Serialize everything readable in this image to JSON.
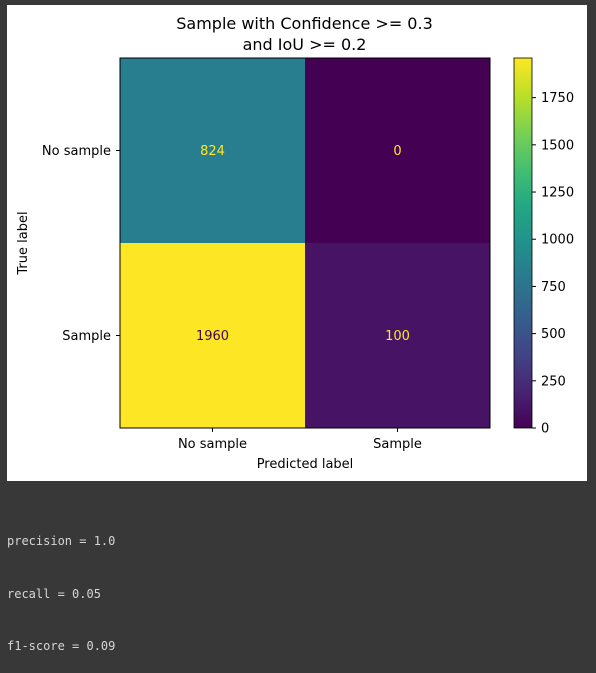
{
  "chart_data": {
    "type": "heatmap",
    "title_lines": [
      "Sample with Confidence >= 0.3",
      "and IoU >= 0.2"
    ],
    "xlabel": "Predicted label",
    "ylabel": "True label",
    "x_categories": [
      "No sample",
      "Sample"
    ],
    "y_categories": [
      "No sample",
      "Sample"
    ],
    "matrix": [
      [
        824,
        0
      ],
      [
        1960,
        100
      ]
    ],
    "colormap": "viridis",
    "colorbar": {
      "range": [
        0,
        1960
      ],
      "ticks": [
        0,
        250,
        500,
        750,
        1000,
        1250,
        1500,
        1750
      ]
    }
  },
  "output": {
    "lines": [
      "precision = 1.0",
      "recall = 0.05",
      "f1-score = 0.09"
    ]
  },
  "colors": {
    "background": "#383838",
    "console_text": "#d6d6d6",
    "light_cell_text": "#fde725",
    "dark_cell_text": "#440154"
  }
}
